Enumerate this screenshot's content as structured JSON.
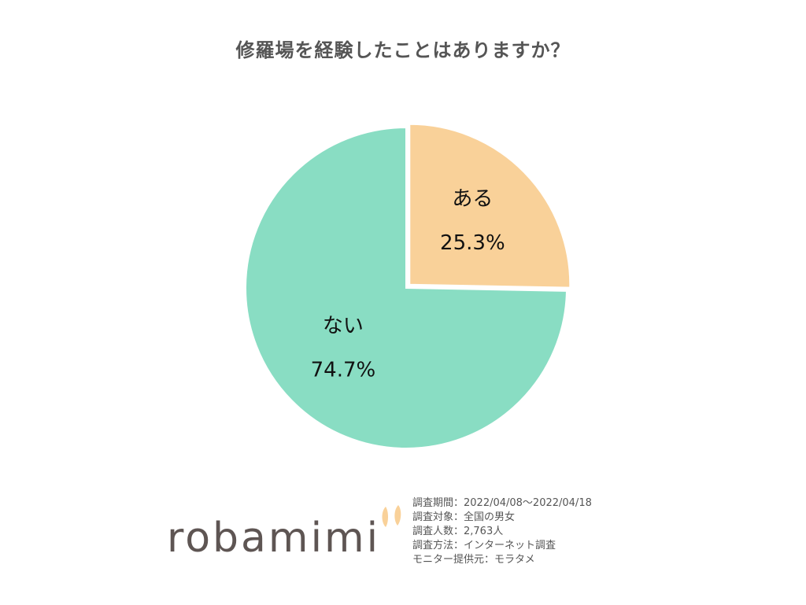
{
  "chart_data": {
    "type": "pie",
    "title": "修羅場を経験したことはありますか？",
    "slices": [
      {
        "label": "ある",
        "value": 25.3,
        "value_label": "25.3%",
        "color": "#f9d199",
        "exploded": true
      },
      {
        "label": "ない",
        "value": 74.7,
        "value_label": "74.7%",
        "color": "#89ddc3",
        "exploded": false
      }
    ],
    "start_angle": "12 o'clock, clockwise",
    "legend": "none"
  },
  "logo": {
    "text": "robamimi",
    "ear_color": "#f9d199"
  },
  "survey_info": [
    "調査期間：2022/04/08～2022/04/18",
    "調査対象：全国の男女",
    "調査人数：2,763人",
    "調査方法：インターネット調査",
    "モニター提供元：モラタメ"
  ]
}
